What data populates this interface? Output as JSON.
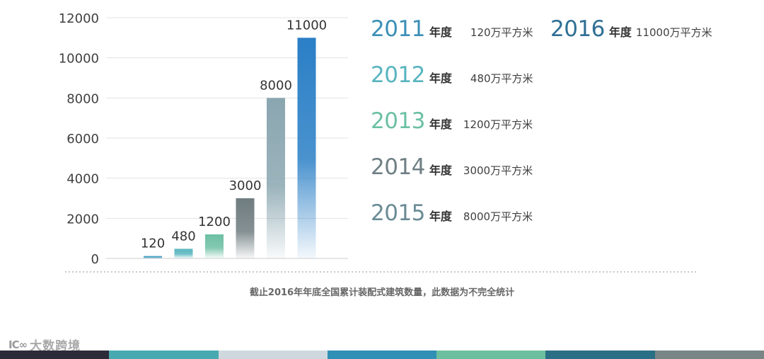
{
  "chart_data": {
    "type": "bar",
    "categories": [
      "2011",
      "2012",
      "2013",
      "2014",
      "2015",
      "2016"
    ],
    "values": [
      120,
      480,
      1200,
      3000,
      8000,
      11000
    ],
    "data_labels": [
      "120",
      "480",
      "1200",
      "3000",
      "8000",
      "11000"
    ],
    "ylim": [
      0,
      12000
    ],
    "yticks": [
      0,
      2000,
      4000,
      6000,
      8000,
      10000,
      12000
    ],
    "ytick_labels": [
      "0",
      "2000",
      "4000",
      "6000",
      "8000",
      "10000",
      "12000"
    ],
    "grid": true,
    "bar_colors": [
      "#3e9cc0",
      "#5ab6c0",
      "#6dbfa4",
      "#6f7c80",
      "#8aa6b0",
      "#2a7fc6"
    ]
  },
  "legend": [
    {
      "year": "2011",
      "unit": "年度",
      "amount": "120万平方米",
      "color": "#3a8fb7"
    },
    {
      "year": "2012",
      "unit": "年度",
      "amount": "480万平方米",
      "color": "#58b4bf"
    },
    {
      "year": "2013",
      "unit": "年度",
      "amount": "1200万平方米",
      "color": "#6cc0a4"
    },
    {
      "year": "2014",
      "unit": "年度",
      "amount": "3000万平方米",
      "color": "#6f7f84"
    },
    {
      "year": "2015",
      "unit": "年度",
      "amount": "8000万平方米",
      "color": "#6a8b95"
    },
    {
      "year": "2016",
      "unit": "年度",
      "amount": "11000万平方米",
      "color": "#2f6f95"
    }
  ],
  "caption": "截止2016年年底全国累计装配式建筑数量，此数据为不完全统计",
  "logo": {
    "mark": "IC∞",
    "text": "大数跨境"
  },
  "bottom_band_colors": [
    "#2b2b3a",
    "#48aab0",
    "#cfd8df",
    "#2f8fb5",
    "#6cbf9e",
    "#2a6f85",
    "#7a8586"
  ]
}
